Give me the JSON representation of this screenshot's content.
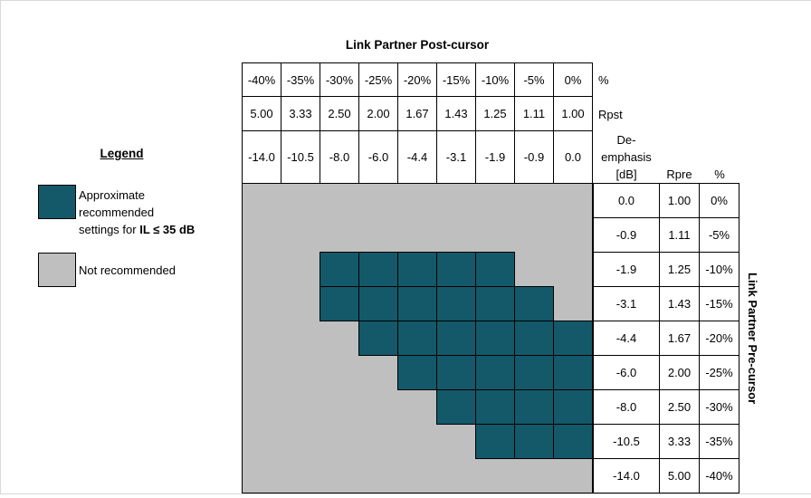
{
  "labels": {
    "top_axis_title": "Link Partner Post-cursor",
    "right_axis_title": "Link Partner Pre-cursor",
    "percent_side_label": "%",
    "rpst_side_label": "Rpst",
    "deemphasis_header_lines": [
      "De-",
      "emphasis",
      "[dB]"
    ],
    "rpre_header": "Rpre",
    "percent_header": "%"
  },
  "legend": {
    "title": "Legend",
    "recommended": {
      "line1": "Approximate",
      "line2": "recommended",
      "line3_normal": "settings for ",
      "line3_bold": "IL ≤ 35 dB"
    },
    "not_recommended_label": "Not recommended"
  },
  "colors": {
    "recommended": "#14596A",
    "not_recommended": "#BFBFBF",
    "table_border": "#000000",
    "page_edge": "#D9D9D9"
  },
  "chart_data": {
    "type": "heatmap",
    "xlabel": "Link Partner Post-cursor",
    "ylabel": "Link Partner Pre-cursor",
    "x_percent": [
      "-40%",
      "-35%",
      "-30%",
      "-25%",
      "-20%",
      "-15%",
      "-10%",
      "-5%",
      "0%"
    ],
    "x_rpst": [
      "5.00",
      "3.33",
      "2.50",
      "2.00",
      "1.67",
      "1.43",
      "1.25",
      "1.11",
      "1.00"
    ],
    "x_deemphasis_db": [
      "-14.0",
      "-10.5",
      "-8.0",
      "-6.0",
      "-4.4",
      "-3.1",
      "-1.9",
      "-0.9",
      "0.0"
    ],
    "y_deemphasis_db": [
      "0.0",
      "-0.9",
      "-1.9",
      "-3.1",
      "-4.4",
      "-6.0",
      "-8.0",
      "-10.5",
      "-14.0"
    ],
    "y_rpre": [
      "1.00",
      "1.11",
      "1.25",
      "1.43",
      "1.67",
      "2.00",
      "2.50",
      "3.33",
      "5.00"
    ],
    "y_percent": [
      "0%",
      "-5%",
      "-10%",
      "-15%",
      "-20%",
      "-25%",
      "-30%",
      "-35%",
      "-40%"
    ],
    "matrix_recommended": [
      [
        0,
        0,
        0,
        0,
        0,
        0,
        0,
        0,
        0
      ],
      [
        0,
        0,
        0,
        0,
        0,
        0,
        0,
        0,
        0
      ],
      [
        0,
        0,
        1,
        1,
        1,
        1,
        1,
        0,
        0
      ],
      [
        0,
        0,
        1,
        1,
        1,
        1,
        1,
        1,
        0
      ],
      [
        0,
        0,
        0,
        1,
        1,
        1,
        1,
        1,
        1
      ],
      [
        0,
        0,
        0,
        0,
        1,
        1,
        1,
        1,
        1
      ],
      [
        0,
        0,
        0,
        0,
        0,
        1,
        1,
        1,
        1
      ],
      [
        0,
        0,
        0,
        0,
        0,
        0,
        1,
        1,
        1
      ],
      [
        0,
        0,
        0,
        0,
        0,
        0,
        0,
        0,
        0
      ]
    ],
    "cell_legend": {
      "recommended": "Approximate recommended settings for IL ≤ 35 dB",
      "not_recommended": "Not recommended"
    },
    "grid": "on",
    "legend_position": "left"
  }
}
